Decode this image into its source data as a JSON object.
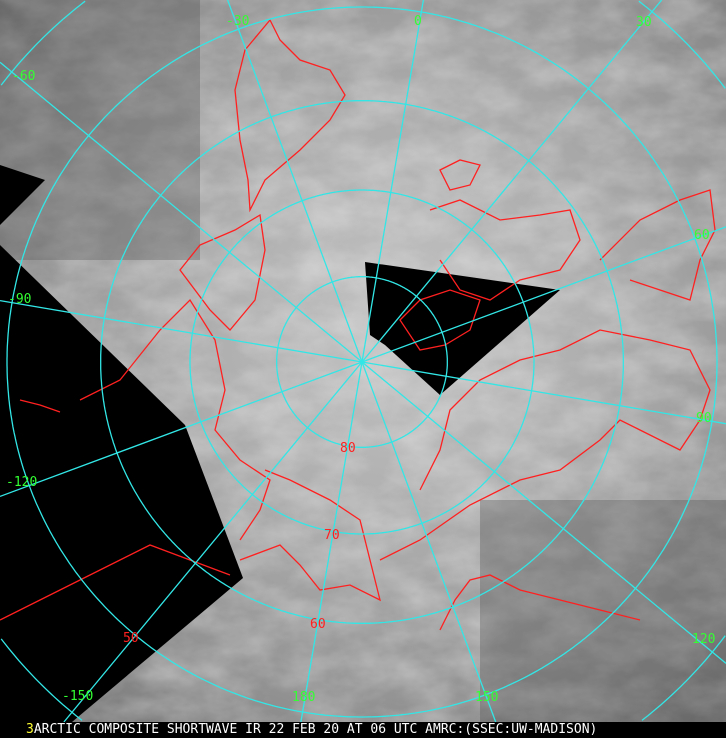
{
  "caption": {
    "frame_number": "3",
    "title": "ARCTIC COMPOSITE SHORTWAVE IR 22 FEB 20 AT 06 UTC AMRC:(SSEC:UW-MADISON)"
  },
  "map": {
    "projection": "polar stereographic, north pole",
    "graticule_color": "#33e6e6",
    "coastline_color": "#ff2020",
    "longitude_label_color": "#33ff33",
    "latitude_label_color": "#ff2020",
    "longitude_labels": [
      "0",
      "30",
      "60",
      "90",
      "120",
      "150",
      "180",
      "-150",
      "-120",
      "-90",
      "-60",
      "-30"
    ],
    "latitude_labels": [
      "80",
      "70",
      "60",
      "50"
    ]
  }
}
